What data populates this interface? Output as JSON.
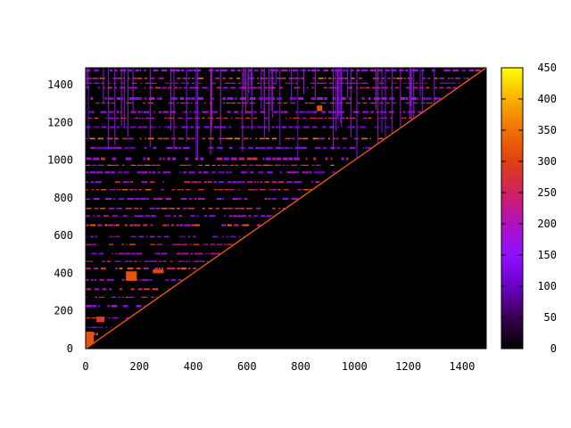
{
  "chart_data": {
    "type": "heatmap",
    "title": "",
    "xlabel": "",
    "ylabel": "",
    "xlim": [
      0,
      1490
    ],
    "ylim": [
      0,
      1490
    ],
    "x_ticks": [
      "0",
      "200",
      "400",
      "600",
      "800",
      "1000",
      "1200",
      "1400"
    ],
    "y_ticks": [
      "0",
      "200",
      "400",
      "600",
      "800",
      "1000",
      "1200",
      "1400"
    ],
    "colorbar": {
      "min": 0,
      "max": 450,
      "ticks": [
        "0",
        "50",
        "100",
        "150",
        "200",
        "250",
        "300",
        "350",
        "400",
        "450"
      ],
      "palette": [
        "#000000",
        "#3a0050",
        "#6a00c8",
        "#9010ff",
        "#b010c0",
        "#d02060",
        "#e04010",
        "#f07000",
        "#f8b000",
        "#ffff00"
      ]
    },
    "structure": "upper-triangular matrix (values above the diagonal, zero below)",
    "background_color": "#000000",
    "bands": [
      {
        "y": 1470,
        "h": 12,
        "intensity": 0.45
      },
      {
        "y": 1430,
        "h": 8,
        "intensity": 0.7
      },
      {
        "y": 1405,
        "h": 6,
        "intensity": 0.35
      },
      {
        "y": 1380,
        "h": 8,
        "intensity": 0.6
      },
      {
        "y": 1320,
        "h": 14,
        "intensity": 0.4
      },
      {
        "y": 1300,
        "h": 6,
        "intensity": 0.65
      },
      {
        "y": 1250,
        "h": 10,
        "intensity": 0.45
      },
      {
        "y": 1220,
        "h": 6,
        "intensity": 0.7
      },
      {
        "y": 1170,
        "h": 10,
        "intensity": 0.3
      },
      {
        "y": 1110,
        "h": 8,
        "intensity": 0.75
      },
      {
        "y": 1060,
        "h": 10,
        "intensity": 0.35
      },
      {
        "y": 1000,
        "h": 14,
        "intensity": 0.55
      },
      {
        "y": 970,
        "h": 6,
        "intensity": 0.7
      },
      {
        "y": 930,
        "h": 10,
        "intensity": 0.4
      },
      {
        "y": 880,
        "h": 8,
        "intensity": 0.55
      },
      {
        "y": 840,
        "h": 6,
        "intensity": 0.7
      },
      {
        "y": 790,
        "h": 10,
        "intensity": 0.45
      },
      {
        "y": 740,
        "h": 8,
        "intensity": 0.65
      },
      {
        "y": 700,
        "h": 8,
        "intensity": 0.45
      },
      {
        "y": 650,
        "h": 10,
        "intensity": 0.7
      },
      {
        "y": 590,
        "h": 8,
        "intensity": 0.35
      },
      {
        "y": 550,
        "h": 6,
        "intensity": 0.7
      },
      {
        "y": 500,
        "h": 8,
        "intensity": 0.45
      },
      {
        "y": 460,
        "h": 6,
        "intensity": 0.6
      },
      {
        "y": 420,
        "h": 10,
        "intensity": 0.7
      },
      {
        "y": 360,
        "h": 8,
        "intensity": 0.45
      },
      {
        "y": 310,
        "h": 10,
        "intensity": 0.7
      },
      {
        "y": 270,
        "h": 6,
        "intensity": 0.55
      },
      {
        "y": 220,
        "h": 12,
        "intensity": 0.45
      },
      {
        "y": 160,
        "h": 6,
        "intensity": 0.65
      },
      {
        "y": 110,
        "h": 6,
        "intensity": 0.35
      },
      {
        "y": 70,
        "h": 14,
        "intensity": 0.72
      }
    ],
    "hotspots": [
      {
        "x": 0,
        "y": 0,
        "w": 30,
        "h": 90,
        "value": 320
      },
      {
        "x": 150,
        "y": 360,
        "w": 40,
        "h": 50,
        "value": 320
      },
      {
        "x": 250,
        "y": 400,
        "w": 40,
        "h": 20,
        "value": 310
      },
      {
        "x": 40,
        "y": 140,
        "w": 30,
        "h": 30,
        "value": 290
      },
      {
        "x": 860,
        "y": 1260,
        "w": 20,
        "h": 30,
        "value": 320
      }
    ]
  }
}
